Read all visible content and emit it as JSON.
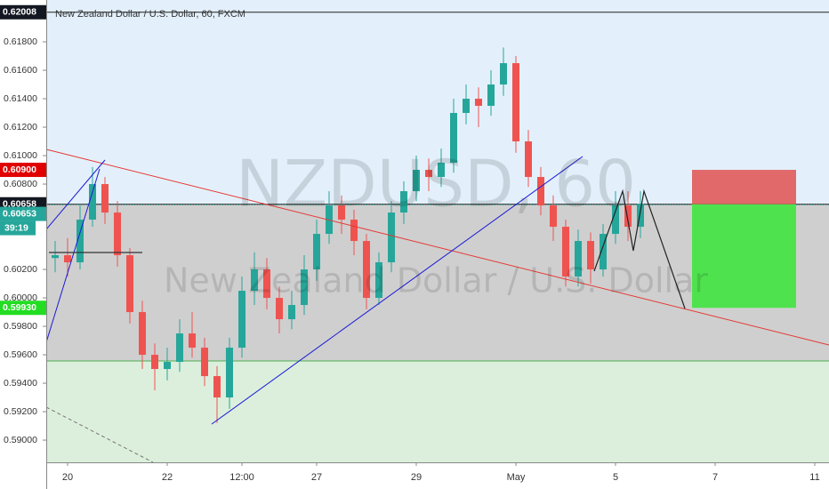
{
  "chart_data": {
    "type": "candlestick",
    "title": "New Zealand Dollar / U.S. Dollar, 60, FXCM",
    "watermark": "NZDUSD, 60",
    "watermark_subtitle": "New Zealand Dollar / U.S. Dollar",
    "x": [
      -0.25,
      0,
      0.25,
      0.5,
      0.75,
      1,
      1.25,
      1.5,
      1.75,
      2,
      2.25,
      2.5,
      2.75,
      3,
      3.25,
      3.5,
      3.75,
      4,
      4.25,
      4.5,
      4.75,
      5,
      5.25,
      5.5,
      5.75,
      6,
      6.25,
      6.5,
      6.75,
      7,
      7.25,
      7.5,
      7.75,
      8,
      8.25,
      8.5,
      8.75,
      9,
      9.25,
      9.5,
      9.75,
      10,
      10.25,
      10.5,
      10.75,
      11,
      11.25,
      11.5
    ],
    "open": [
      0.6028,
      0.603,
      0.6025,
      0.6055,
      0.608,
      0.606,
      0.603,
      0.599,
      0.596,
      0.595,
      0.5955,
      0.5975,
      0.5965,
      0.5945,
      0.593,
      0.5965,
      0.6005,
      0.602,
      0.6,
      0.5985,
      0.5995,
      0.602,
      0.6045,
      0.6065,
      0.6055,
      0.604,
      0.6,
      0.6025,
      0.606,
      0.6075,
      0.609,
      0.6085,
      0.6095,
      0.613,
      0.614,
      0.6135,
      0.615,
      0.6165,
      0.611,
      0.6085,
      0.6065,
      0.605,
      0.6015,
      0.604,
      0.602,
      0.6045,
      0.6065,
      0.605
    ],
    "high": [
      0.604,
      0.6042,
      0.6065,
      0.6092,
      0.6085,
      0.6068,
      0.6035,
      0.5998,
      0.5968,
      0.5965,
      0.5985,
      0.599,
      0.5972,
      0.5952,
      0.5972,
      0.6015,
      0.6032,
      0.6028,
      0.6008,
      0.6005,
      0.603,
      0.6055,
      0.6075,
      0.6072,
      0.6062,
      0.6045,
      0.6032,
      0.6068,
      0.6082,
      0.61,
      0.6098,
      0.6105,
      0.614,
      0.615,
      0.6148,
      0.616,
      0.6176,
      0.617,
      0.6118,
      0.6092,
      0.6072,
      0.6055,
      0.6048,
      0.6046,
      0.6052,
      0.6075,
      0.6075,
      0.6075
    ],
    "low": [
      0.6018,
      0.6015,
      0.602,
      0.605,
      0.6052,
      0.6022,
      0.5982,
      0.595,
      0.5935,
      0.5942,
      0.5948,
      0.5958,
      0.5938,
      0.5912,
      0.5922,
      0.5958,
      0.5995,
      0.5992,
      0.5975,
      0.5978,
      0.5988,
      0.6012,
      0.6038,
      0.6045,
      0.603,
      0.5992,
      0.5995,
      0.6018,
      0.6052,
      0.6068,
      0.6075,
      0.6078,
      0.6088,
      0.6122,
      0.612,
      0.6128,
      0.6142,
      0.6102,
      0.6078,
      0.6058,
      0.604,
      0.6008,
      0.6008,
      0.601,
      0.6015,
      0.6038,
      0.604,
      0.6042
    ],
    "close": [
      0.603,
      0.6025,
      0.6055,
      0.608,
      0.606,
      0.603,
      0.599,
      0.596,
      0.595,
      0.5955,
      0.5975,
      0.5965,
      0.5945,
      0.593,
      0.5965,
      0.6005,
      0.602,
      0.6,
      0.5985,
      0.5995,
      0.602,
      0.6045,
      0.6065,
      0.6055,
      0.604,
      0.6,
      0.6025,
      0.606,
      0.6075,
      0.609,
      0.6085,
      0.6095,
      0.613,
      0.614,
      0.6135,
      0.615,
      0.6165,
      0.611,
      0.6085,
      0.6065,
      0.605,
      0.6015,
      0.604,
      0.602,
      0.6045,
      0.6065,
      0.605,
      0.6066
    ],
    "up_color": "#26a69a",
    "down_color": "#ef5350",
    "xlim": [
      -0.4286,
      15.2857
    ],
    "xticks": [
      {
        "value": 0,
        "label": "20"
      },
      {
        "value": 2,
        "label": "22"
      },
      {
        "value": 3.5,
        "label": "12:00"
      },
      {
        "value": 5,
        "label": "27"
      },
      {
        "value": 7,
        "label": "29"
      },
      {
        "value": 9,
        "label": "May"
      },
      {
        "value": 11,
        "label": "5"
      },
      {
        "value": 13,
        "label": "7"
      },
      {
        "value": 15,
        "label": "11"
      }
    ],
    "ylim": [
      0.58844,
      0.62094
    ],
    "yticks": [
      {
        "value": 0.618,
        "label": "0.61800"
      },
      {
        "value": 0.616,
        "label": "0.61600"
      },
      {
        "value": 0.614,
        "label": "0.61400"
      },
      {
        "value": 0.612,
        "label": "0.61200"
      },
      {
        "value": 0.61,
        "label": "0.61000"
      },
      {
        "value": 0.608,
        "label": "0.60800"
      },
      {
        "value": 0.602,
        "label": "0.60200"
      },
      {
        "value": 0.6,
        "label": "0.60000"
      },
      {
        "value": 0.598,
        "label": "0.59800"
      },
      {
        "value": 0.596,
        "label": "0.59600"
      },
      {
        "value": 0.594,
        "label": "0.59400"
      },
      {
        "value": 0.592,
        "label": "0.59200"
      },
      {
        "value": 0.59,
        "label": "0.59000"
      }
    ],
    "price_labels": [
      {
        "value": 0.62008,
        "label": "0.62008",
        "color": "#131722"
      },
      {
        "value": 0.609,
        "label": "0.60900",
        "color": "#e00000"
      },
      {
        "value": 0.60658,
        "label": "0.60658",
        "color": "#131722"
      },
      {
        "value": 0.60653,
        "label": "0.60653",
        "color": "#26a69a"
      },
      {
        "value": 0.5993,
        "label": "0.59930",
        "color": "#22dd22"
      }
    ],
    "countdown": "39:19"
  }
}
